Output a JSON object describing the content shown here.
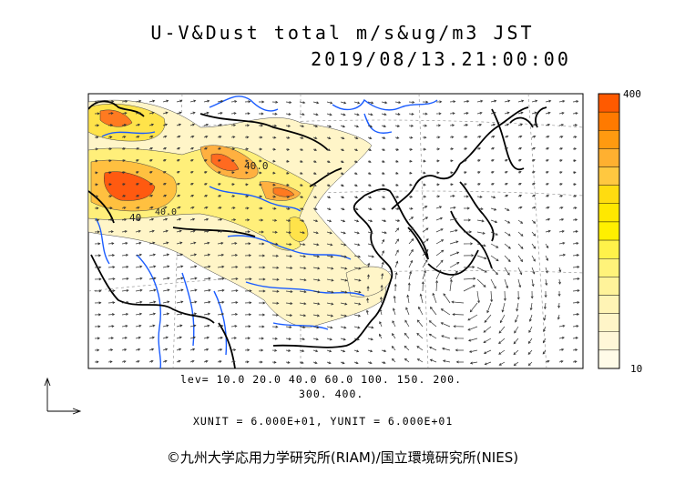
{
  "header": {
    "title": "U-V&Dust total m/s&ug/m3 JST",
    "datetime": "2019/08/13.21:00:00"
  },
  "colorbar": {
    "max_label": "400",
    "min_label": "10",
    "colors": [
      "#ff5a00",
      "#ff7a00",
      "#ff9a10",
      "#ffb030",
      "#ffc840",
      "#ffdc10",
      "#ffe800",
      "#fff000",
      "#fff24a",
      "#fff37a",
      "#fff39a",
      "#fff4b5",
      "#fff5c8",
      "#fff7d8",
      "#fffbe8"
    ]
  },
  "legend": {
    "levels_line1": "lev=  10.0  20.0  40.0  60.0  100.  150.  200.",
    "levels_line2": "300.  400.",
    "units": "XUNIT = 6.000E+01, YUNIT = 6.000E+01"
  },
  "map": {
    "contour_labels": [
      "40.0",
      "40",
      "40.0"
    ],
    "colors": {
      "coast": "#000000",
      "river": "#1a5cff",
      "dust_low": "#fff5c8",
      "dust_mid": "#ffe34a",
      "dust_high": "#ffb040",
      "dust_peak": "#ff5a10"
    },
    "vector_key": "reference-vector-icon"
  },
  "credit": "©九州大学応用力学研究所(RIAM)/国立環境研究所(NIES)"
}
